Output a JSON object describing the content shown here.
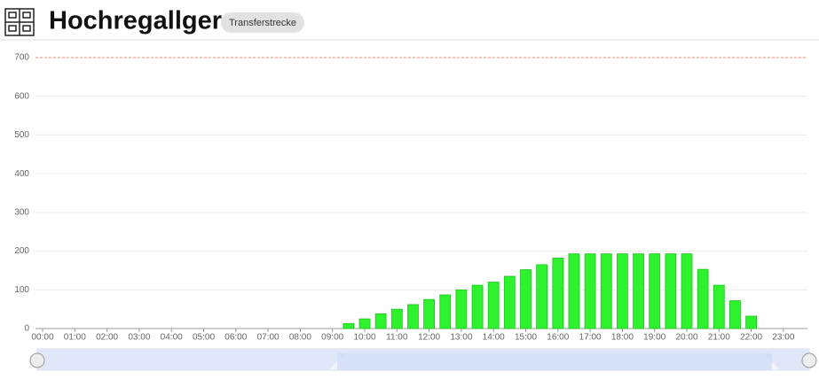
{
  "header": {
    "title": "Hochregallger",
    "badge": "Transferstrecke"
  },
  "chart_data": {
    "type": "bar",
    "categories": [
      "00:00",
      null,
      "01:00",
      null,
      "02:00",
      null,
      "03:00",
      null,
      "04:00",
      null,
      "05:00",
      null,
      "06:00",
      null,
      "07:00",
      null,
      "08:00",
      null,
      "09:00",
      null,
      "10:00",
      null,
      "11:00",
      null,
      "12:00",
      null,
      "13:00",
      null,
      "14:00",
      null,
      "15:00",
      null,
      "16:00",
      null,
      "17:00",
      null,
      "18:00",
      null,
      "19:00",
      null,
      "20:00",
      null,
      "21:00",
      null,
      "22:00",
      null,
      "23:00",
      null
    ],
    "values": [
      0,
      0,
      0,
      0,
      0,
      0,
      0,
      0,
      0,
      0,
      0,
      0,
      0,
      0,
      0,
      0,
      0,
      0,
      0,
      13,
      25,
      38,
      50,
      62,
      75,
      87,
      100,
      112,
      120,
      135,
      152,
      165,
      182,
      193,
      193,
      193,
      193,
      193,
      193,
      193,
      193,
      153,
      112,
      72,
      32,
      0,
      0,
      0
    ],
    "color": "#2df22d",
    "ylim": [
      0,
      700
    ],
    "yticks": [
      0,
      100,
      200,
      300,
      400,
      500,
      600,
      700
    ],
    "grid": true,
    "threshold": 700,
    "threshold_color": "#f08a8a"
  }
}
